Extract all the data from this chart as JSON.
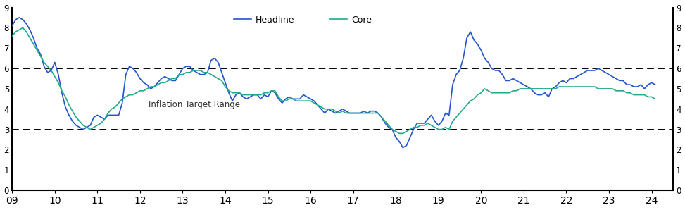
{
  "headline_color": "#2255CC",
  "core_color": "#22AA88",
  "target_line_color": "#000000",
  "background_color": "#ffffff",
  "ylim": [
    0,
    9
  ],
  "yticks": [
    0,
    1,
    2,
    3,
    4,
    5,
    6,
    7,
    8,
    9
  ],
  "target_low": 3,
  "target_high": 6,
  "annotation": "Inflation Target Range",
  "legend_labels": [
    "Headline",
    "Core"
  ],
  "headline": [
    8.1,
    8.4,
    8.5,
    8.4,
    8.2,
    7.9,
    7.5,
    7.0,
    6.7,
    6.1,
    5.8,
    5.9,
    6.3,
    5.7,
    4.8,
    4.1,
    3.7,
    3.4,
    3.2,
    3.1,
    3.0,
    3.1,
    3.2,
    3.6,
    3.7,
    3.6,
    3.5,
    3.7,
    3.7,
    3.7,
    3.7,
    4.3,
    5.7,
    6.1,
    6.0,
    5.8,
    5.5,
    5.3,
    5.2,
    5.0,
    5.1,
    5.3,
    5.5,
    5.6,
    5.5,
    5.4,
    5.4,
    5.7,
    6.0,
    6.1,
    6.1,
    5.9,
    5.8,
    5.7,
    5.7,
    5.8,
    6.4,
    6.5,
    6.3,
    5.8,
    5.3,
    4.8,
    4.4,
    4.7,
    4.8,
    4.6,
    4.5,
    4.6,
    4.7,
    4.7,
    4.5,
    4.7,
    4.6,
    4.9,
    4.8,
    4.5,
    4.3,
    4.5,
    4.6,
    4.5,
    4.5,
    4.5,
    4.7,
    4.6,
    4.5,
    4.4,
    4.2,
    4.0,
    3.8,
    4.0,
    3.9,
    3.8,
    3.9,
    4.0,
    3.9,
    3.8,
    3.8,
    3.8,
    3.8,
    3.9,
    3.8,
    3.9,
    3.9,
    3.8,
    3.6,
    3.3,
    3.1,
    3.0,
    2.6,
    2.4,
    2.1,
    2.2,
    2.6,
    3.0,
    3.3,
    3.3,
    3.3,
    3.5,
    3.7,
    3.4,
    3.2,
    3.4,
    3.8,
    3.7,
    5.2,
    5.7,
    5.9,
    6.5,
    7.5,
    7.8,
    7.4,
    7.2,
    6.9,
    6.5,
    6.3,
    6.0,
    5.9,
    5.9,
    5.7,
    5.4,
    5.4,
    5.5,
    5.4,
    5.3,
    5.2,
    5.1,
    5.0,
    4.8,
    4.7,
    4.7,
    4.8,
    4.6,
    5.0,
    5.1,
    5.3,
    5.4,
    5.3,
    5.5,
    5.5,
    5.6,
    5.7,
    5.8,
    5.9,
    5.9,
    5.9,
    6.0,
    5.9,
    5.8,
    5.7,
    5.6,
    5.5,
    5.4,
    5.4,
    5.2,
    5.2,
    5.1,
    5.1,
    5.2,
    5.0,
    5.2,
    5.3,
    5.2
  ],
  "core": [
    7.6,
    7.8,
    7.9,
    8.0,
    7.8,
    7.5,
    7.2,
    6.9,
    6.6,
    6.3,
    6.1,
    5.9,
    5.6,
    5.3,
    4.9,
    4.6,
    4.2,
    3.9,
    3.6,
    3.4,
    3.2,
    3.1,
    3.0,
    3.1,
    3.2,
    3.3,
    3.5,
    3.8,
    4.0,
    4.1,
    4.3,
    4.5,
    4.6,
    4.7,
    4.7,
    4.8,
    4.9,
    4.9,
    5.0,
    5.1,
    5.1,
    5.2,
    5.3,
    5.3,
    5.4,
    5.5,
    5.5,
    5.7,
    5.7,
    5.8,
    5.8,
    5.9,
    5.9,
    5.9,
    5.8,
    5.8,
    5.7,
    5.6,
    5.5,
    5.4,
    5.1,
    4.9,
    4.8,
    4.8,
    4.8,
    4.7,
    4.7,
    4.7,
    4.7,
    4.7,
    4.7,
    4.8,
    4.8,
    4.9,
    4.9,
    4.6,
    4.4,
    4.4,
    4.5,
    4.5,
    4.4,
    4.4,
    4.4,
    4.4,
    4.4,
    4.3,
    4.2,
    4.1,
    4.0,
    4.0,
    4.0,
    3.9,
    3.8,
    3.9,
    3.8,
    3.8,
    3.8,
    3.8,
    3.8,
    3.8,
    3.8,
    3.8,
    3.8,
    3.8,
    3.6,
    3.4,
    3.2,
    3.0,
    2.9,
    2.8,
    2.8,
    2.9,
    3.0,
    3.1,
    3.1,
    3.2,
    3.2,
    3.3,
    3.2,
    3.1,
    3.0,
    3.0,
    3.1,
    3.0,
    3.4,
    3.6,
    3.8,
    4.0,
    4.2,
    4.4,
    4.5,
    4.7,
    4.8,
    5.0,
    4.9,
    4.8,
    4.8,
    4.8,
    4.8,
    4.8,
    4.8,
    4.9,
    4.9,
    5.0,
    5.0,
    5.0,
    5.0,
    5.0,
    5.0,
    5.0,
    5.0,
    5.0,
    5.0,
    5.0,
    5.1,
    5.1,
    5.1,
    5.1,
    5.1,
    5.1,
    5.1,
    5.1,
    5.1,
    5.1,
    5.1,
    5.0,
    5.0,
    5.0,
    5.0,
    5.0,
    4.9,
    4.9,
    4.9,
    4.8,
    4.8,
    4.7,
    4.7,
    4.7,
    4.7,
    4.6,
    4.6,
    4.5
  ]
}
